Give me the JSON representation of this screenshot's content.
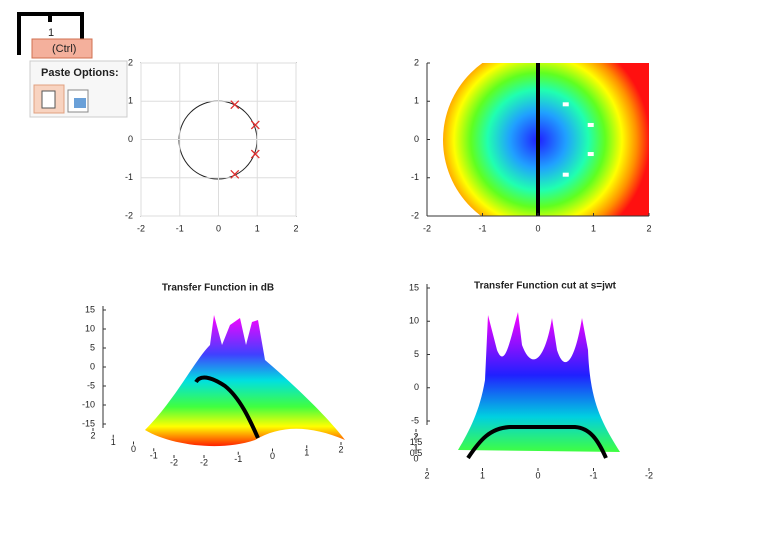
{
  "ui": {
    "slide_number": "1",
    "paste_button": "(Ctrl)",
    "paste_options": "Paste Options:"
  },
  "chart_data": [
    {
      "type": "scatter",
      "x": [
        0.42,
        0.95,
        0.95,
        0.42
      ],
      "values": [
        0.91,
        0.38,
        -0.38,
        -0.91
      ],
      "color": "#e03030",
      "xlim": [
        -2,
        2
      ],
      "ylim": [
        -2,
        2
      ],
      "xticks": [
        -2,
        -1,
        0,
        1,
        2
      ],
      "yticks": [
        -2,
        -1,
        0,
        1,
        2
      ],
      "grid": true
    },
    {
      "type": "heatmap",
      "x": [
        0.5,
        0.95,
        0.95,
        0.5
      ],
      "values": [
        0.92,
        0.38,
        -0.38,
        -0.92
      ],
      "color": "#ffffff",
      "xlim": [
        -2,
        2
      ],
      "ylim": [
        -2,
        2
      ],
      "xticks": [
        -2,
        -1,
        0,
        1,
        2
      ],
      "yticks": [
        -2,
        -1,
        0,
        1,
        2
      ],
      "grid": false
    },
    {
      "type": "surface",
      "title": "Transfer Function in dB",
      "zticks": [
        15,
        10,
        5,
        0,
        -5,
        -10,
        -15
      ],
      "zlim": [
        -15,
        15
      ],
      "xticks": [
        -2,
        -1,
        0,
        1,
        2
      ],
      "xlim": [
        -2,
        2
      ],
      "yticks": [
        2,
        1,
        0,
        -1,
        -2
      ],
      "ylim": [
        2,
        -2
      ]
    },
    {
      "type": "surface",
      "title": "Transfer Function cut at s=jwt",
      "zticks": [
        15,
        10,
        5,
        0,
        -5
      ],
      "zlim": [
        -5,
        15
      ],
      "xticks": [
        2,
        1,
        0,
        -1,
        -2
      ],
      "xlim": [
        2,
        -2
      ],
      "yticks": [
        2,
        1.5,
        1,
        0.5,
        0
      ],
      "ylim": [
        2,
        0
      ]
    }
  ]
}
